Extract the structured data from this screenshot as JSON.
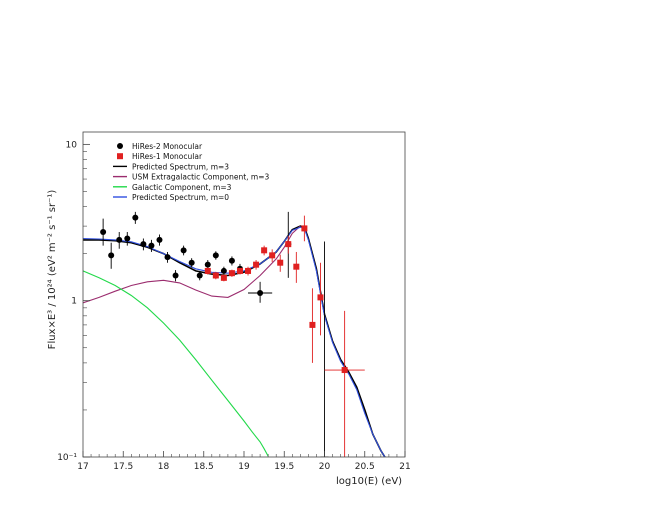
{
  "chart_data": {
    "type": "scatter",
    "xlabel": "log10(E) (eV)",
    "ylabel": "Flux×E³ / 10²⁴ (eV² m⁻² s⁻¹ sr⁻¹)",
    "xlim": [
      17,
      21
    ],
    "ylim": [
      0.1,
      12
    ],
    "yscale": "log",
    "x_ticks": [
      17,
      17.5,
      18,
      18.5,
      19,
      19.5,
      20,
      20.5,
      21
    ],
    "x_tick_labels": [
      "17",
      "17.5",
      "18",
      "18.5",
      "19",
      "19.5",
      "20",
      "20.5",
      "21"
    ],
    "y_ticks": [
      0.1,
      1,
      10
    ],
    "y_tick_labels": [
      "10⁻¹",
      "1",
      "10"
    ],
    "legend_position": "top-left",
    "series": [
      {
        "name": "HiRes-2 Monocular",
        "kind": "points",
        "marker": "circle",
        "color": "#000000",
        "points": [
          {
            "x": 17.25,
            "y": 2.75,
            "yerr": [
              0.5,
              0.6
            ]
          },
          {
            "x": 17.35,
            "y": 1.95,
            "yerr": [
              0.35,
              0.4
            ]
          },
          {
            "x": 17.45,
            "y": 2.45,
            "yerr": [
              0.3,
              0.3
            ]
          },
          {
            "x": 17.55,
            "y": 2.5,
            "yerr": [
              0.25,
              0.25
            ]
          },
          {
            "x": 17.65,
            "y": 3.4,
            "yerr": [
              0.3,
              0.3
            ]
          },
          {
            "x": 17.75,
            "y": 2.3,
            "yerr": [
              0.2,
              0.2
            ]
          },
          {
            "x": 17.85,
            "y": 2.25,
            "yerr": [
              0.2,
              0.2
            ]
          },
          {
            "x": 17.95,
            "y": 2.45,
            "yerr": [
              0.2,
              0.2
            ]
          },
          {
            "x": 18.05,
            "y": 1.9,
            "yerr": [
              0.15,
              0.15
            ]
          },
          {
            "x": 18.15,
            "y": 1.45,
            "yerr": [
              0.12,
              0.12
            ]
          },
          {
            "x": 18.25,
            "y": 2.1,
            "yerr": [
              0.15,
              0.15
            ]
          },
          {
            "x": 18.35,
            "y": 1.75,
            "yerr": [
              0.12,
              0.12
            ]
          },
          {
            "x": 18.45,
            "y": 1.45,
            "yerr": [
              0.1,
              0.1
            ]
          },
          {
            "x": 18.55,
            "y": 1.7,
            "yerr": [
              0.12,
              0.12
            ]
          },
          {
            "x": 18.65,
            "y": 1.95,
            "yerr": [
              0.12,
              0.12
            ]
          },
          {
            "x": 18.75,
            "y": 1.55,
            "yerr": [
              0.1,
              0.1
            ]
          },
          {
            "x": 18.85,
            "y": 1.8,
            "yerr": [
              0.12,
              0.12
            ]
          },
          {
            "x": 18.95,
            "y": 1.6,
            "yerr": [
              0.12,
              0.12
            ]
          },
          {
            "x": 19.2,
            "y": 1.12,
            "yerr": [
              0.15,
              0.2
            ],
            "xerr": [
              0.15,
              0.15
            ]
          },
          {
            "x": 19.55,
            "y": 2.3,
            "yerr": [
              0.9,
              1.4
            ]
          },
          {
            "x": 20.0,
            "y": 0.09,
            "yerr": [
              0.0,
              2.3
            ],
            "xerr": [
              0.05,
              0.05
            ]
          }
        ]
      },
      {
        "name": "HiRes-1 Monocular",
        "kind": "points",
        "marker": "square",
        "color": "#e02020",
        "points": [
          {
            "x": 18.55,
            "y": 1.55,
            "yerr": [
              0.08,
              0.08
            ]
          },
          {
            "x": 18.65,
            "y": 1.45,
            "yerr": [
              0.08,
              0.08
            ]
          },
          {
            "x": 18.75,
            "y": 1.4,
            "yerr": [
              0.07,
              0.07
            ]
          },
          {
            "x": 18.85,
            "y": 1.5,
            "yerr": [
              0.08,
              0.08
            ]
          },
          {
            "x": 18.95,
            "y": 1.55,
            "yerr": [
              0.08,
              0.08
            ]
          },
          {
            "x": 19.05,
            "y": 1.55,
            "yerr": [
              0.1,
              0.1
            ]
          },
          {
            "x": 19.15,
            "y": 1.7,
            "yerr": [
              0.12,
              0.12
            ]
          },
          {
            "x": 19.25,
            "y": 2.1,
            "yerr": [
              0.15,
              0.15
            ]
          },
          {
            "x": 19.35,
            "y": 1.95,
            "yerr": [
              0.18,
              0.18
            ]
          },
          {
            "x": 19.45,
            "y": 1.75,
            "yerr": [
              0.22,
              0.22
            ]
          },
          {
            "x": 19.55,
            "y": 2.3,
            "yerr": [
              0.3,
              0.3
            ]
          },
          {
            "x": 19.65,
            "y": 1.65,
            "yerr": [
              0.35,
              0.4
            ]
          },
          {
            "x": 19.75,
            "y": 2.9,
            "yerr": [
              0.5,
              0.6
            ]
          },
          {
            "x": 19.85,
            "y": 0.7,
            "yerr": [
              0.3,
              0.5
            ]
          },
          {
            "x": 19.95,
            "y": 1.05,
            "yerr": [
              0.45,
              0.7
            ]
          },
          {
            "x": 20.25,
            "y": 0.36,
            "yerr": [
              0.27,
              0.5
            ],
            "xerr": [
              0.25,
              0.25
            ]
          }
        ]
      },
      {
        "name": "Predicted Spectrum, m=3",
        "kind": "line",
        "color": "#000000",
        "x": [
          17.0,
          17.2,
          17.4,
          17.6,
          17.8,
          18.0,
          18.2,
          18.4,
          18.6,
          18.8,
          19.0,
          19.2,
          19.4,
          19.5,
          19.6,
          19.7,
          19.75,
          19.8,
          19.9,
          20.0,
          20.1,
          20.2,
          20.3,
          20.4,
          20.5,
          20.6,
          20.7,
          20.75
        ],
        "y": [
          2.45,
          2.45,
          2.42,
          2.35,
          2.2,
          2.0,
          1.75,
          1.55,
          1.48,
          1.45,
          1.52,
          1.72,
          2.05,
          2.4,
          2.85,
          3.0,
          2.95,
          2.5,
          1.6,
          0.82,
          0.55,
          0.42,
          0.35,
          0.28,
          0.2,
          0.14,
          0.11,
          0.1
        ]
      },
      {
        "name": "USM Extragalactic Component, m=3",
        "kind": "line",
        "color": "#9b2c6e",
        "x": [
          17.0,
          17.2,
          17.4,
          17.6,
          17.8,
          18.0,
          18.2,
          18.4,
          18.6,
          18.8,
          19.0,
          19.2,
          19.4,
          19.5,
          19.6,
          19.7
        ],
        "y": [
          0.97,
          1.05,
          1.15,
          1.25,
          1.32,
          1.35,
          1.3,
          1.17,
          1.07,
          1.05,
          1.18,
          1.45,
          1.85,
          2.2,
          2.7,
          3.0
        ]
      },
      {
        "name": "Galactic Component, m=3",
        "kind": "line",
        "color": "#22d94a",
        "x": [
          17.0,
          17.2,
          17.4,
          17.6,
          17.8,
          18.0,
          18.2,
          18.4,
          18.6,
          18.8,
          19.0,
          19.1,
          19.2,
          19.25,
          19.3
        ],
        "y": [
          1.55,
          1.4,
          1.25,
          1.08,
          0.9,
          0.72,
          0.56,
          0.42,
          0.31,
          0.23,
          0.17,
          0.145,
          0.125,
          0.113,
          0.101
        ]
      },
      {
        "name": "Predicted Spectrum, m=0",
        "kind": "line",
        "color": "#3050e0",
        "x": [
          17.0,
          17.2,
          17.4,
          17.6,
          17.8,
          18.0,
          18.2,
          18.4,
          18.6,
          18.8,
          19.0,
          19.2,
          19.4,
          19.5,
          19.6,
          19.7,
          19.75,
          19.8,
          19.9,
          20.0,
          20.1,
          20.2,
          20.3,
          20.4,
          20.5,
          20.6,
          20.7,
          20.75
        ],
        "y": [
          2.5,
          2.48,
          2.45,
          2.38,
          2.22,
          2.0,
          1.78,
          1.6,
          1.52,
          1.5,
          1.55,
          1.72,
          2.05,
          2.4,
          2.82,
          2.95,
          2.9,
          2.45,
          1.55,
          0.8,
          0.54,
          0.41,
          0.34,
          0.27,
          0.19,
          0.14,
          0.11,
          0.1
        ]
      }
    ]
  }
}
